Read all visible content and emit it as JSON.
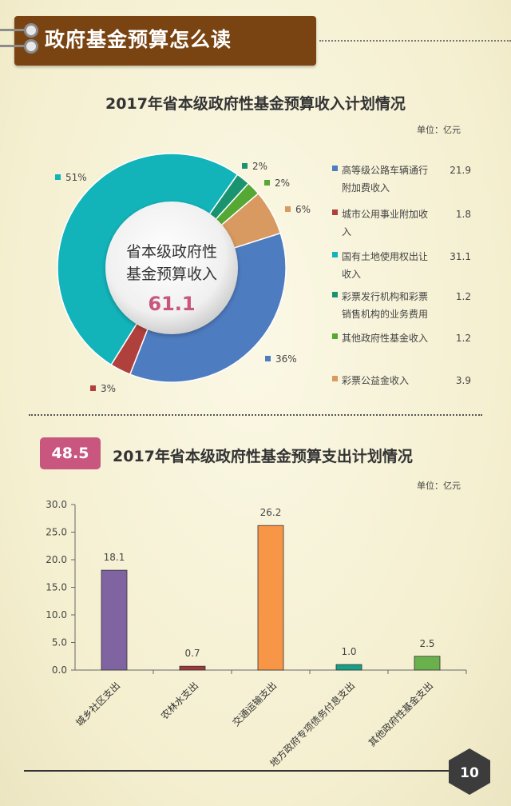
{
  "header": {
    "title": "政府基金预算怎么读"
  },
  "pie_section": {
    "title": "2017年省本级政府性基金预算收入计划情况",
    "unit": "单位：亿元",
    "center_label_line1": "省本级政府性",
    "center_label_line2": "基金预算收入",
    "center_total": "61.1"
  },
  "bar_section": {
    "badge": "48.5",
    "title": "2017年省本级政府性基金预算支出计划情况",
    "unit": "单位：亿元"
  },
  "page_number": "10",
  "chart_data": [
    {
      "type": "pie",
      "title": "2017年省本级政府性基金预算收入计划情况",
      "slices": [
        {
          "name": "高等级公路车辆通行附加费收入",
          "name_line1": "高等级公路车辆通行",
          "name_line2": "附加费收入",
          "value": 21.9,
          "value_label": "21.9",
          "pct_label": "36%",
          "color": "#4e7cc0"
        },
        {
          "name": "城市公用事业附加收入",
          "name_line1": "城市公用事业附加收",
          "name_line2": "入",
          "value": 1.8,
          "value_label": "1.8",
          "pct_label": "3%",
          "color": "#b0403c"
        },
        {
          "name": "国有土地使用权出让收入",
          "name_line1": "国有土地使用权出让",
          "name_line2": "收入",
          "value": 31.1,
          "value_label": "31.1",
          "pct_label": "51%",
          "color": "#12b4ba"
        },
        {
          "name": "彩票发行机构和彩票销售机构的业务费用",
          "name_line1": "彩票发行机构和彩票",
          "name_line2": "销售机构的业务费用",
          "value": 1.2,
          "value_label": "1.2",
          "pct_label": "2%",
          "color": "#1a9470"
        },
        {
          "name": "其他政府性基金收入",
          "name_line1": "其他政府性基金收入",
          "name_line2": "",
          "value": 1.2,
          "value_label": "1.2",
          "pct_label": "2%",
          "color": "#56a834"
        },
        {
          "name": "彩票公益金收入",
          "name_line1": "彩票公益金收入",
          "name_line2": "",
          "value": 3.9,
          "value_label": "3.9",
          "pct_label": "6%",
          "color": "#d89a60"
        }
      ]
    },
    {
      "type": "bar",
      "title": "2017年省本级政府性基金预算支出计划情况",
      "categories": [
        "城乡社区支出",
        "农林水支出",
        "交通运输支出",
        "地方政府专项债务付息支出",
        "其他政府性基金支出"
      ],
      "values": [
        18.1,
        0.7,
        26.2,
        1.0,
        2.5
      ],
      "value_labels": [
        "18.1",
        "0.7",
        "26.2",
        "1.0",
        "2.5"
      ],
      "colors": [
        "#8064a2",
        "#a03a3a",
        "#f79646",
        "#16a085",
        "#6ab04c"
      ],
      "ylim": [
        0,
        30
      ],
      "yticks": [
        "0.0",
        "5.0",
        "10.0",
        "15.0",
        "20.0",
        "25.0",
        "30.0"
      ],
      "grid": false
    }
  ]
}
